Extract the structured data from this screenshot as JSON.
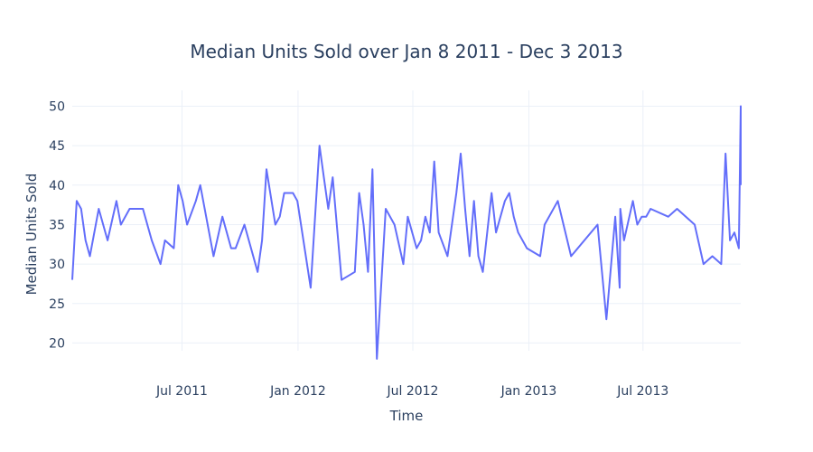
{
  "chart_data": {
    "type": "line",
    "title": "Median Units Sold over Jan 8 2011 - Dec 3 2013",
    "xlabel": "Time",
    "ylabel": "Median Units Sold",
    "xlim": [
      "2011-01-08",
      "2013-12-03"
    ],
    "ylim": [
      16.5,
      52
    ],
    "grid": true,
    "legend": "none",
    "colors": {
      "line": "#636efa",
      "grid": "#ebf0f8",
      "text": "#2a3f5f"
    },
    "x_ticks": [
      {
        "label": "Jul 2011",
        "date": "2011-07-01"
      },
      {
        "label": "Jan 2012",
        "date": "2012-01-01"
      },
      {
        "label": "Jul 2012",
        "date": "2012-07-01"
      },
      {
        "label": "Jan 2013",
        "date": "2013-01-01"
      },
      {
        "label": "Jul 2013",
        "date": "2013-07-01"
      }
    ],
    "y_ticks": [
      20,
      25,
      30,
      35,
      40,
      45,
      50
    ],
    "series": [
      {
        "x": [
          "2011-01-08",
          "2011-01-15",
          "2011-01-22",
          "2011-01-29",
          "2011-02-05",
          "2011-02-19",
          "2011-03-05",
          "2011-03-19",
          "2011-03-26",
          "2011-04-09",
          "2011-04-30",
          "2011-05-14",
          "2011-05-28",
          "2011-06-04",
          "2011-06-18",
          "2011-06-25",
          "2011-07-02",
          "2011-07-09",
          "2011-07-23",
          "2011-07-30",
          "2011-08-20",
          "2011-09-03",
          "2011-09-17",
          "2011-09-24",
          "2011-10-08",
          "2011-10-29",
          "2011-11-05",
          "2011-11-12",
          "2011-11-26",
          "2011-12-03",
          "2011-12-10",
          "2011-12-24",
          "2011-12-31",
          "2012-01-21",
          "2012-02-04",
          "2012-02-11",
          "2012-02-18",
          "2012-02-25",
          "2012-03-10",
          "2012-03-31",
          "2012-04-07",
          "2012-04-14",
          "2012-04-21",
          "2012-04-28",
          "2012-05-05",
          "2012-05-19",
          "2012-06-02",
          "2012-06-16",
          "2012-06-23",
          "2012-07-07",
          "2012-07-14",
          "2012-07-21",
          "2012-07-28",
          "2012-08-04",
          "2012-08-11",
          "2012-08-25",
          "2012-09-08",
          "2012-09-15",
          "2012-09-22",
          "2012-09-29",
          "2012-10-06",
          "2012-10-13",
          "2012-10-20",
          "2012-11-03",
          "2012-11-10",
          "2012-11-24",
          "2012-12-01",
          "2012-12-08",
          "2012-12-15",
          "2012-12-29",
          "2013-01-19",
          "2013-01-26",
          "2013-02-16",
          "2013-03-09",
          "2013-04-20",
          "2013-05-04",
          "2013-05-18",
          "2013-05-25",
          "2013-05-26",
          "2013-06-01",
          "2013-06-15",
          "2013-06-22",
          "2013-06-29",
          "2013-07-06",
          "2013-07-13",
          "2013-08-10",
          "2013-08-24",
          "2013-09-21",
          "2013-10-05",
          "2013-10-19",
          "2013-11-02",
          "2013-11-09",
          "2013-11-16",
          "2013-11-23",
          "2013-11-30",
          "2013-12-03"
        ],
        "y": [
          28,
          38,
          37,
          33,
          31,
          37,
          33,
          38,
          35,
          37,
          37,
          33,
          30,
          33,
          32,
          40,
          38,
          35,
          38,
          40,
          31,
          36,
          32,
          32,
          35,
          29,
          33,
          42,
          35,
          36,
          39,
          39,
          38,
          27,
          45,
          41,
          37,
          41,
          28,
          29,
          39,
          35,
          29,
          42,
          18,
          37,
          35,
          30,
          36,
          32,
          33,
          36,
          34,
          43,
          34,
          31,
          39,
          44,
          37,
          31,
          38,
          31,
          29,
          39,
          34,
          38,
          39,
          36,
          34,
          32,
          31,
          35,
          38,
          31,
          35,
          23,
          36,
          27,
          37,
          33,
          38,
          35,
          36,
          36,
          37,
          36,
          37,
          35,
          30,
          31,
          30,
          44,
          33,
          34,
          32,
          50
        ],
        "values_note": "approximate"
      }
    ]
  }
}
